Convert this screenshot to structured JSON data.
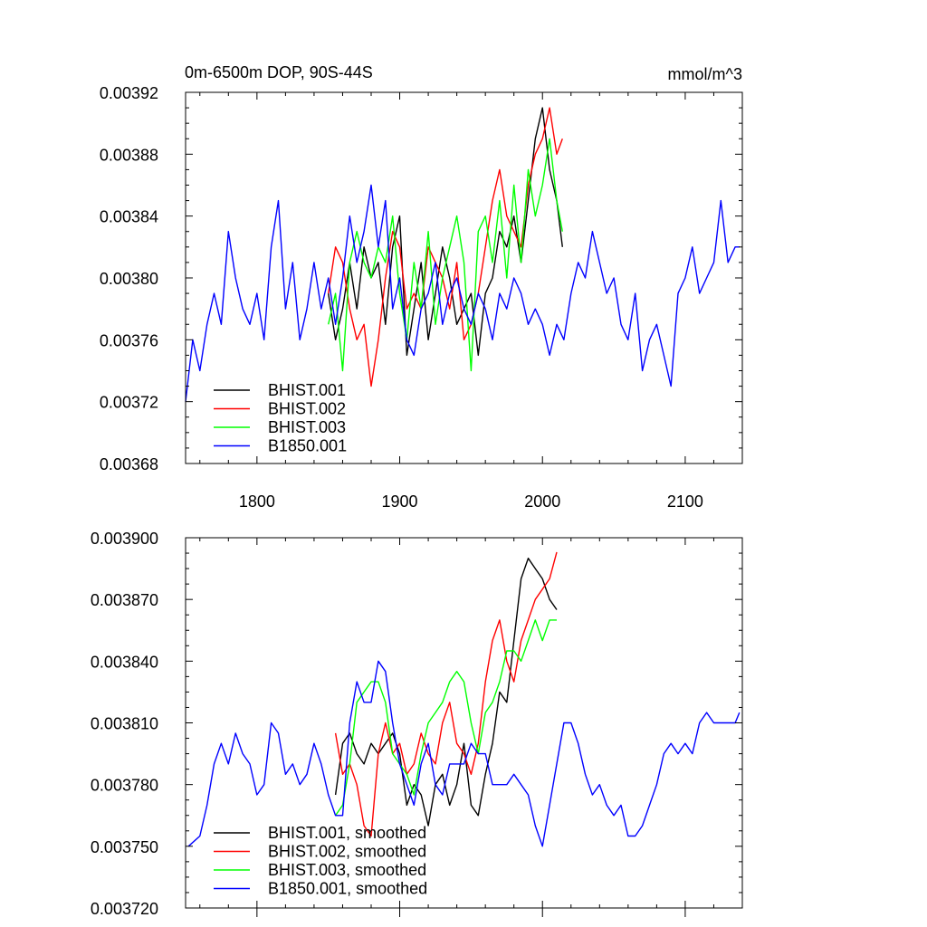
{
  "title_left": "0m-6500m DOP, 90S-44S",
  "title_right": "mmol/m^3",
  "colors": {
    "BHIST.001": "#000000",
    "BHIST.002": "#ff0000",
    "BHIST.003": "#00ff00",
    "B1850.001": "#0000ff"
  },
  "chart_data": [
    {
      "type": "line",
      "xlim": [
        1750,
        2140
      ],
      "ylim": [
        0.00368,
        0.00392
      ],
      "xticks": [
        1800,
        1900,
        2000,
        2100
      ],
      "xtick_labels": [
        "1800",
        "1900",
        "2000",
        "2100"
      ],
      "yticks": [
        0.00368,
        0.00372,
        0.00376,
        0.0038,
        0.00384,
        0.00388,
        0.00392
      ],
      "ytick_labels": [
        "0.00368",
        "0.00372",
        "0.00376",
        "0.00380",
        "0.00384",
        "0.00388",
        "0.00392"
      ],
      "legend_position": "bottom-left",
      "series": [
        {
          "name": "BHIST.001",
          "color": "#000000",
          "x": [
            1850,
            1855,
            1860,
            1865,
            1870,
            1875,
            1880,
            1885,
            1890,
            1895,
            1900,
            1905,
            1910,
            1915,
            1920,
            1925,
            1930,
            1935,
            1940,
            1945,
            1950,
            1955,
            1960,
            1965,
            1970,
            1975,
            1980,
            1985,
            1990,
            1995,
            2000,
            2005,
            2010,
            2014
          ],
          "values": [
            0.00379,
            0.00376,
            0.00378,
            0.00381,
            0.00378,
            0.00382,
            0.0038,
            0.00381,
            0.00377,
            0.00382,
            0.00384,
            0.00375,
            0.00378,
            0.00381,
            0.00376,
            0.00379,
            0.00382,
            0.0038,
            0.00377,
            0.00378,
            0.00379,
            0.00375,
            0.00379,
            0.0038,
            0.00383,
            0.00382,
            0.00384,
            0.00381,
            0.00385,
            0.00389,
            0.00391,
            0.00387,
            0.00385,
            0.00382
          ]
        },
        {
          "name": "BHIST.002",
          "color": "#ff0000",
          "x": [
            1850,
            1855,
            1860,
            1865,
            1870,
            1875,
            1880,
            1885,
            1890,
            1895,
            1900,
            1905,
            1910,
            1915,
            1920,
            1925,
            1930,
            1935,
            1940,
            1945,
            1950,
            1955,
            1960,
            1965,
            1970,
            1975,
            1980,
            1985,
            1990,
            1995,
            2000,
            2005,
            2010,
            2014
          ],
          "values": [
            0.00379,
            0.00382,
            0.00381,
            0.00378,
            0.00376,
            0.00377,
            0.00373,
            0.00376,
            0.0038,
            0.00383,
            0.00382,
            0.00378,
            0.00379,
            0.00378,
            0.00382,
            0.00381,
            0.0038,
            0.00378,
            0.00381,
            0.00376,
            0.00377,
            0.00379,
            0.00382,
            0.00385,
            0.00387,
            0.00384,
            0.00383,
            0.00382,
            0.00386,
            0.00388,
            0.00389,
            0.00391,
            0.00388,
            0.00389
          ]
        },
        {
          "name": "BHIST.003",
          "color": "#00ff00",
          "x": [
            1850,
            1855,
            1860,
            1865,
            1870,
            1875,
            1880,
            1885,
            1890,
            1895,
            1900,
            1905,
            1910,
            1915,
            1920,
            1925,
            1930,
            1935,
            1940,
            1945,
            1950,
            1955,
            1960,
            1965,
            1970,
            1975,
            1980,
            1985,
            1990,
            1995,
            2000,
            2005,
            2010,
            2014
          ],
          "values": [
            0.00377,
            0.00379,
            0.00374,
            0.00381,
            0.00383,
            0.00381,
            0.0038,
            0.00382,
            0.00381,
            0.00384,
            0.00379,
            0.00376,
            0.00381,
            0.00378,
            0.00383,
            0.00377,
            0.0038,
            0.00382,
            0.00384,
            0.00381,
            0.00374,
            0.00383,
            0.00384,
            0.00381,
            0.00385,
            0.0038,
            0.00386,
            0.00381,
            0.00387,
            0.00384,
            0.00386,
            0.00389,
            0.00385,
            0.00383
          ]
        },
        {
          "name": "B1850.001",
          "color": "#0000ff",
          "x": [
            1750,
            1755,
            1760,
            1765,
            1770,
            1775,
            1780,
            1785,
            1790,
            1795,
            1800,
            1805,
            1810,
            1815,
            1820,
            1825,
            1830,
            1835,
            1840,
            1845,
            1850,
            1855,
            1860,
            1865,
            1870,
            1875,
            1880,
            1885,
            1890,
            1895,
            1900,
            1905,
            1910,
            1915,
            1920,
            1925,
            1930,
            1935,
            1940,
            1945,
            1950,
            1955,
            1960,
            1965,
            1970,
            1975,
            1980,
            1985,
            1990,
            1995,
            2000,
            2005,
            2010,
            2015,
            2020,
            2025,
            2030,
            2035,
            2040,
            2045,
            2050,
            2055,
            2060,
            2065,
            2070,
            2075,
            2080,
            2085,
            2090,
            2095,
            2100,
            2105,
            2110,
            2115,
            2120,
            2125,
            2130,
            2135,
            2138
          ],
          "values": [
            0.00372,
            0.00376,
            0.00374,
            0.00377,
            0.00379,
            0.00377,
            0.00383,
            0.0038,
            0.00378,
            0.00377,
            0.00379,
            0.00376,
            0.00382,
            0.00385,
            0.00378,
            0.00381,
            0.00376,
            0.00378,
            0.00381,
            0.00378,
            0.0038,
            0.00377,
            0.0038,
            0.00384,
            0.00381,
            0.00383,
            0.00386,
            0.00382,
            0.00385,
            0.00378,
            0.0038,
            0.00376,
            0.00375,
            0.00378,
            0.00379,
            0.00381,
            0.00377,
            0.00379,
            0.0038,
            0.00378,
            0.00377,
            0.00379,
            0.00378,
            0.00376,
            0.00379,
            0.00378,
            0.0038,
            0.00379,
            0.00377,
            0.00378,
            0.00377,
            0.00375,
            0.00377,
            0.00376,
            0.00379,
            0.00381,
            0.0038,
            0.00383,
            0.00381,
            0.00379,
            0.0038,
            0.00377,
            0.00376,
            0.00379,
            0.00374,
            0.00376,
            0.00377,
            0.00375,
            0.00373,
            0.00379,
            0.0038,
            0.00382,
            0.00379,
            0.0038,
            0.00381,
            0.00385,
            0.00381,
            0.00382,
            0.00382
          ]
        }
      ],
      "legend": [
        "BHIST.001",
        "BHIST.002",
        "BHIST.003",
        "B1850.001"
      ]
    },
    {
      "type": "line",
      "xlim": [
        1750,
        2140
      ],
      "ylim": [
        0.00372,
        0.0039
      ],
      "xticks": [
        1800,
        1900,
        2000,
        2100
      ],
      "xtick_labels": [],
      "yticks": [
        0.00372,
        0.00375,
        0.00378,
        0.00381,
        0.00384,
        0.00387,
        0.0039
      ],
      "ytick_labels": [
        "0.003720",
        "0.003750",
        "0.003780",
        "0.003810",
        "0.003840",
        "0.003870",
        "0.003900"
      ],
      "legend_position": "bottom-left",
      "series": [
        {
          "name": "BHIST.001, smoothed",
          "color": "#000000",
          "x": [
            1855,
            1860,
            1865,
            1870,
            1875,
            1880,
            1885,
            1890,
            1895,
            1900,
            1905,
            1910,
            1915,
            1920,
            1925,
            1930,
            1935,
            1940,
            1945,
            1950,
            1955,
            1960,
            1965,
            1970,
            1975,
            1980,
            1985,
            1990,
            1995,
            2000,
            2005,
            2010
          ],
          "values": [
            0.003775,
            0.0038,
            0.003805,
            0.003795,
            0.00379,
            0.0038,
            0.003795,
            0.0038,
            0.003805,
            0.003795,
            0.00377,
            0.00378,
            0.003775,
            0.00376,
            0.00378,
            0.003785,
            0.00377,
            0.00378,
            0.0038,
            0.00377,
            0.003765,
            0.003785,
            0.0038,
            0.003825,
            0.00382,
            0.00385,
            0.00388,
            0.00389,
            0.003885,
            0.00388,
            0.00387,
            0.003865
          ]
        },
        {
          "name": "BHIST.002, smoothed",
          "color": "#ff0000",
          "x": [
            1855,
            1860,
            1865,
            1870,
            1875,
            1880,
            1885,
            1890,
            1895,
            1900,
            1905,
            1910,
            1915,
            1920,
            1925,
            1930,
            1935,
            1940,
            1945,
            1950,
            1955,
            1960,
            1965,
            1970,
            1975,
            1980,
            1985,
            1990,
            1995,
            2000,
            2005,
            2010
          ],
          "values": [
            0.003805,
            0.003785,
            0.00379,
            0.00378,
            0.00376,
            0.003755,
            0.003795,
            0.00381,
            0.003795,
            0.0038,
            0.003785,
            0.00379,
            0.003805,
            0.003795,
            0.00379,
            0.00381,
            0.00382,
            0.0038,
            0.003795,
            0.003785,
            0.0038,
            0.00383,
            0.00385,
            0.00386,
            0.00384,
            0.00383,
            0.00385,
            0.00386,
            0.00387,
            0.003875,
            0.00388,
            0.003893
          ]
        },
        {
          "name": "BHIST.003, smoothed",
          "color": "#00ff00",
          "x": [
            1855,
            1860,
            1865,
            1870,
            1875,
            1880,
            1885,
            1890,
            1895,
            1900,
            1905,
            1910,
            1915,
            1920,
            1925,
            1930,
            1935,
            1940,
            1945,
            1950,
            1955,
            1960,
            1965,
            1970,
            1975,
            1980,
            1985,
            1990,
            1995,
            2000,
            2005,
            2010
          ],
          "values": [
            0.003765,
            0.00377,
            0.00379,
            0.00382,
            0.003825,
            0.00383,
            0.00383,
            0.00382,
            0.003795,
            0.00379,
            0.003785,
            0.003775,
            0.003795,
            0.00381,
            0.003815,
            0.00382,
            0.00383,
            0.003835,
            0.00383,
            0.00381,
            0.003795,
            0.003815,
            0.00382,
            0.00383,
            0.003845,
            0.003845,
            0.00384,
            0.00385,
            0.00386,
            0.00385,
            0.00386,
            0.00386
          ]
        },
        {
          "name": "B1850.001, smoothed",
          "color": "#0000ff",
          "x": [
            1752,
            1760,
            1765,
            1770,
            1775,
            1780,
            1785,
            1790,
            1795,
            1800,
            1805,
            1810,
            1815,
            1820,
            1825,
            1830,
            1835,
            1840,
            1845,
            1850,
            1855,
            1860,
            1865,
            1870,
            1875,
            1880,
            1885,
            1890,
            1895,
            1900,
            1905,
            1910,
            1915,
            1920,
            1925,
            1930,
            1935,
            1940,
            1945,
            1950,
            1955,
            1960,
            1965,
            1970,
            1975,
            1980,
            1985,
            1990,
            1995,
            2000,
            2005,
            2010,
            2015,
            2020,
            2025,
            2030,
            2035,
            2040,
            2045,
            2050,
            2055,
            2060,
            2065,
            2070,
            2075,
            2080,
            2085,
            2090,
            2095,
            2100,
            2105,
            2110,
            2115,
            2120,
            2125,
            2130,
            2135,
            2138
          ],
          "values": [
            0.00375,
            0.003755,
            0.00377,
            0.00379,
            0.0038,
            0.00379,
            0.003805,
            0.003795,
            0.00379,
            0.003775,
            0.00378,
            0.00381,
            0.003805,
            0.003785,
            0.00379,
            0.00378,
            0.003785,
            0.0038,
            0.00379,
            0.003775,
            0.003765,
            0.003765,
            0.00381,
            0.00383,
            0.00382,
            0.00382,
            0.00384,
            0.003835,
            0.00381,
            0.00379,
            0.00378,
            0.00377,
            0.00379,
            0.0038,
            0.00378,
            0.003775,
            0.00379,
            0.00379,
            0.00379,
            0.0038,
            0.003795,
            0.003795,
            0.00378,
            0.00378,
            0.00378,
            0.003785,
            0.00378,
            0.003775,
            0.00376,
            0.00375,
            0.00377,
            0.00379,
            0.00381,
            0.00381,
            0.0038,
            0.003785,
            0.003775,
            0.00378,
            0.00377,
            0.003765,
            0.00377,
            0.003755,
            0.003755,
            0.00376,
            0.00377,
            0.00378,
            0.003795,
            0.0038,
            0.003795,
            0.0038,
            0.003795,
            0.00381,
            0.003815,
            0.00381,
            0.00381,
            0.00381,
            0.00381,
            0.003815
          ]
        }
      ],
      "legend": [
        "BHIST.001, smoothed",
        "BHIST.002, smoothed",
        "BHIST.003, smoothed",
        "B1850.001, smoothed"
      ]
    }
  ]
}
